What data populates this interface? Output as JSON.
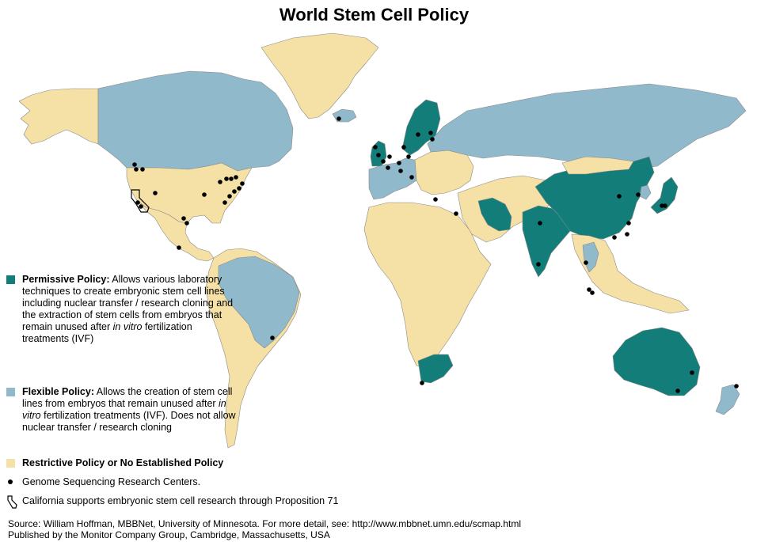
{
  "title": "World Stem Cell Policy",
  "colors": {
    "permissive": "#137d79",
    "flexible": "#91b9cc",
    "restrictive": "#f5e0a6",
    "ocean": "#ffffff",
    "border": "#8a8a8a"
  },
  "legend": {
    "permissive": {
      "head": "Permissive Policy:",
      "text1": " Allows",
      "text2": "various laboratory techniques to create embryonic stem cell lines including nuclear transfer / research cloning and the extraction of stem cells from embryos that remain unused after ",
      "italic": "in vitro",
      "text3": " fertilization treatments (IVF)"
    },
    "flexible": {
      "head": "Flexible Policy:",
      "text1": " Allows the creation of stem cell lines from embryos that remain unused after ",
      "italic": "in vitro",
      "text2": " fertilization treatments (IVF).  Does not allow nuclear transfer / research cloning"
    },
    "restrictive": {
      "head": "Restrictive Policy or No Established Policy"
    },
    "genome": "Genome Sequencing Research Centers.",
    "california": "California supports embryonic stem cell research through Proposition 71"
  },
  "source": {
    "line1": "Source:  William Hoffman, MBBNet, University of Minnesota. For more detail, see: http://www.mbbnet.umn.edu/scmap.html",
    "line2": "Published by the Monitor Company Group, Cambridge, Massachusetts, USA"
  },
  "regions": [
    {
      "name": "Alaska",
      "policy": "restrictive"
    },
    {
      "name": "Canada",
      "policy": "flexible"
    },
    {
      "name": "Greenland",
      "policy": "restrictive"
    },
    {
      "name": "Iceland",
      "policy": "flexible"
    },
    {
      "name": "United States",
      "policy": "restrictive"
    },
    {
      "name": "Mexico and Central America",
      "policy": "restrictive"
    },
    {
      "name": "South America",
      "policy": "restrictive"
    },
    {
      "name": "Brazil",
      "policy": "flexible"
    },
    {
      "name": "United Kingdom",
      "policy": "permissive"
    },
    {
      "name": "Sweden and Finland",
      "policy": "permissive"
    },
    {
      "name": "Western Europe",
      "policy": "flexible"
    },
    {
      "name": "Central Europe",
      "policy": "restrictive"
    },
    {
      "name": "Russia",
      "policy": "flexible"
    },
    {
      "name": "Africa",
      "policy": "restrictive"
    },
    {
      "name": "South Africa",
      "policy": "permissive"
    },
    {
      "name": "Middle East and Central Asia",
      "policy": "restrictive"
    },
    {
      "name": "Iran",
      "policy": "permissive"
    },
    {
      "name": "India",
      "policy": "permissive"
    },
    {
      "name": "China",
      "policy": "permissive"
    },
    {
      "name": "Mongolia",
      "policy": "restrictive"
    },
    {
      "name": "Japan",
      "policy": "permissive"
    },
    {
      "name": "South Korea",
      "policy": "flexible"
    },
    {
      "name": "Southeast Asia",
      "policy": "restrictive"
    },
    {
      "name": "Thailand",
      "policy": "flexible"
    },
    {
      "name": "Australia",
      "policy": "permissive"
    },
    {
      "name": "New Zealand",
      "policy": "flexible"
    }
  ]
}
